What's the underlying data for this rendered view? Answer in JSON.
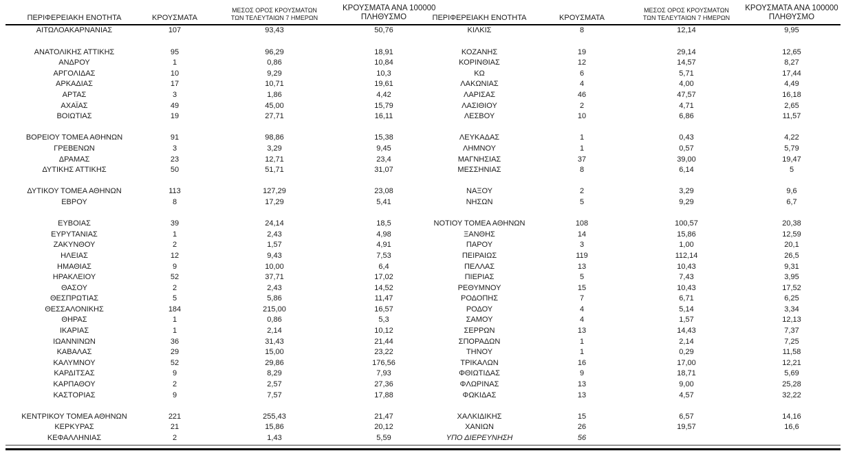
{
  "colors": {
    "background": "#ffffff",
    "text": "#1b1b1b",
    "rule": "#000000"
  },
  "table": {
    "headers": {
      "region": "ΠΕΡΙΦΕΡΕΙΑΚΗ ΕΝΟΤΗΤΑ",
      "cases": "ΚΡΟΥΣΜΑΤΑ",
      "avg7_line1": "ΜΕΣΟΣ ΟΡΟΣ ΚΡΟΥΣΜΑΤΩΝ",
      "avg7_line2": "ΤΩΝ ΤΕΛΕΥΤΑΙΩΝ 7 ΗΜΕΡΩΝ",
      "per100k_line1": "ΚΡΟΥΣΜΑΤΑ ΑΝΑ 100000",
      "per100k_line2": "ΠΛΗΘΥΣΜΟ"
    },
    "rows": [
      {
        "left": {
          "region": "ΑΙΤΩΛΟΑΚΑΡΝΑΝΙΑΣ",
          "cases": "107",
          "avg7": "93,43",
          "per100k": "50,76"
        },
        "right": {
          "region": "ΚΙΛΚΙΣ",
          "cases": "8",
          "avg7": "12,14",
          "per100k": "9,95"
        }
      },
      {
        "left": null,
        "right": null
      },
      {
        "left": {
          "region": "ΑΝΑΤΟΛΙΚΗΣ ΑΤΤΙΚΗΣ",
          "cases": "95",
          "avg7": "96,29",
          "per100k": "18,91"
        },
        "right": {
          "region": "ΚΟΖΑΝΗΣ",
          "cases": "19",
          "avg7": "29,14",
          "per100k": "12,65"
        }
      },
      {
        "left": {
          "region": "ΑΝΔΡΟΥ",
          "cases": "1",
          "avg7": "0,86",
          "per100k": "10,84"
        },
        "right": {
          "region": "ΚΟΡΙΝΘΙΑΣ",
          "cases": "12",
          "avg7": "14,57",
          "per100k": "8,27"
        }
      },
      {
        "left": {
          "region": "ΑΡΓΟΛΙΔΑΣ",
          "cases": "10",
          "avg7": "9,29",
          "per100k": "10,3"
        },
        "right": {
          "region": "ΚΩ",
          "cases": "6",
          "avg7": "5,71",
          "per100k": "17,44"
        }
      },
      {
        "left": {
          "region": "ΑΡΚΑΔΙΑΣ",
          "cases": "17",
          "avg7": "10,71",
          "per100k": "19,61"
        },
        "right": {
          "region": "ΛΑΚΩΝΙΑΣ",
          "cases": "4",
          "avg7": "4,00",
          "per100k": "4,49"
        }
      },
      {
        "left": {
          "region": "ΑΡΤΑΣ",
          "cases": "3",
          "avg7": "1,86",
          "per100k": "4,42"
        },
        "right": {
          "region": "ΛΑΡΙΣΑΣ",
          "cases": "46",
          "avg7": "47,57",
          "per100k": "16,18"
        }
      },
      {
        "left": {
          "region": "ΑΧΑΪΑΣ",
          "cases": "49",
          "avg7": "45,00",
          "per100k": "15,79"
        },
        "right": {
          "region": "ΛΑΣΙΘΙΟΥ",
          "cases": "2",
          "avg7": "4,71",
          "per100k": "2,65"
        }
      },
      {
        "left": {
          "region": "ΒΟΙΩΤΙΑΣ",
          "cases": "19",
          "avg7": "27,71",
          "per100k": "16,11"
        },
        "right": {
          "region": "ΛΕΣΒΟΥ",
          "cases": "10",
          "avg7": "6,86",
          "per100k": "11,57"
        }
      },
      {
        "left": null,
        "right": null
      },
      {
        "left": {
          "region": "ΒΟΡΕΙΟΥ ΤΟΜΕΑ ΑΘΗΝΩΝ",
          "cases": "91",
          "avg7": "98,86",
          "per100k": "15,38"
        },
        "right": {
          "region": "ΛΕΥΚΑΔΑΣ",
          "cases": "1",
          "avg7": "0,43",
          "per100k": "4,22"
        }
      },
      {
        "left": {
          "region": "ΓΡΕΒΕΝΩΝ",
          "cases": "3",
          "avg7": "3,29",
          "per100k": "9,45"
        },
        "right": {
          "region": "ΛΗΜΝΟΥ",
          "cases": "1",
          "avg7": "0,57",
          "per100k": "5,79"
        }
      },
      {
        "left": {
          "region": "ΔΡΑΜΑΣ",
          "cases": "23",
          "avg7": "12,71",
          "per100k": "23,4"
        },
        "right": {
          "region": "ΜΑΓΝΗΣΙΑΣ",
          "cases": "37",
          "avg7": "39,00",
          "per100k": "19,47"
        }
      },
      {
        "left": {
          "region": "ΔΥΤΙΚΗΣ ΑΤΤΙΚΗΣ",
          "cases": "50",
          "avg7": "51,71",
          "per100k": "31,07"
        },
        "right": {
          "region": "ΜΕΣΣΗΝΙΑΣ",
          "cases": "8",
          "avg7": "6,14",
          "per100k": "5"
        }
      },
      {
        "left": null,
        "right": null
      },
      {
        "left": {
          "region": "ΔΥΤΙΚΟΥ ΤΟΜΕΑ ΑΘΗΝΩΝ",
          "cases": "113",
          "avg7": "127,29",
          "per100k": "23,08"
        },
        "right": {
          "region": "ΝΑΞΟΥ",
          "cases": "2",
          "avg7": "3,29",
          "per100k": "9,6"
        }
      },
      {
        "left": {
          "region": "ΕΒΡΟΥ",
          "cases": "8",
          "avg7": "17,29",
          "per100k": "5,41"
        },
        "right": {
          "region": "ΝΗΣΩΝ",
          "cases": "5",
          "avg7": "9,29",
          "per100k": "6,7"
        }
      },
      {
        "left": null,
        "right": null
      },
      {
        "left": {
          "region": "ΕΥΒΟΙΑΣ",
          "cases": "39",
          "avg7": "24,14",
          "per100k": "18,5"
        },
        "right": {
          "region": "ΝΟΤΙΟΥ ΤΟΜΕΑ ΑΘΗΝΩΝ",
          "cases": "108",
          "avg7": "100,57",
          "per100k": "20,38"
        }
      },
      {
        "left": {
          "region": "ΕΥΡΥΤΑΝΙΑΣ",
          "cases": "1",
          "avg7": "2,43",
          "per100k": "4,98"
        },
        "right": {
          "region": "ΞΑΝΘΗΣ",
          "cases": "14",
          "avg7": "15,86",
          "per100k": "12,59"
        }
      },
      {
        "left": {
          "region": "ΖΑΚΥΝΘΟΥ",
          "cases": "2",
          "avg7": "1,57",
          "per100k": "4,91"
        },
        "right": {
          "region": "ΠΑΡΟΥ",
          "cases": "3",
          "avg7": "1,00",
          "per100k": "20,1"
        }
      },
      {
        "left": {
          "region": "ΗΛΕΙΑΣ",
          "cases": "12",
          "avg7": "9,43",
          "per100k": "7,53"
        },
        "right": {
          "region": "ΠΕΙΡΑΙΩΣ",
          "cases": "119",
          "avg7": "112,14",
          "per100k": "26,5"
        }
      },
      {
        "left": {
          "region": "ΗΜΑΘΙΑΣ",
          "cases": "9",
          "avg7": "10,00",
          "per100k": "6,4"
        },
        "right": {
          "region": "ΠΕΛΛΑΣ",
          "cases": "13",
          "avg7": "10,43",
          "per100k": "9,31"
        }
      },
      {
        "left": {
          "region": "ΗΡΑΚΛΕΙΟΥ",
          "cases": "52",
          "avg7": "37,71",
          "per100k": "17,02"
        },
        "right": {
          "region": "ΠΙΕΡΙΑΣ",
          "cases": "5",
          "avg7": "7,43",
          "per100k": "3,95"
        }
      },
      {
        "left": {
          "region": "ΘΑΣΟΥ",
          "cases": "2",
          "avg7": "2,43",
          "per100k": "14,52"
        },
        "right": {
          "region": "ΡΕΘΥΜΝΟΥ",
          "cases": "15",
          "avg7": "10,43",
          "per100k": "17,52"
        }
      },
      {
        "left": {
          "region": "ΘΕΣΠΡΩΤΙΑΣ",
          "cases": "5",
          "avg7": "5,86",
          "per100k": "11,47"
        },
        "right": {
          "region": "ΡΟΔΟΠΗΣ",
          "cases": "7",
          "avg7": "6,71",
          "per100k": "6,25"
        }
      },
      {
        "left": {
          "region": "ΘΕΣΣΑΛΟΝΙΚΗΣ",
          "cases": "184",
          "avg7": "215,00",
          "per100k": "16,57"
        },
        "right": {
          "region": "ΡΟΔΟΥ",
          "cases": "4",
          "avg7": "5,14",
          "per100k": "3,34"
        }
      },
      {
        "left": {
          "region": "ΘΗΡΑΣ",
          "cases": "1",
          "avg7": "0,86",
          "per100k": "5,3"
        },
        "right": {
          "region": "ΣΑΜΟΥ",
          "cases": "4",
          "avg7": "1,57",
          "per100k": "12,13"
        }
      },
      {
        "left": {
          "region": "ΙΚΑΡΙΑΣ",
          "cases": "1",
          "avg7": "2,14",
          "per100k": "10,12"
        },
        "right": {
          "region": "ΣΕΡΡΩΝ",
          "cases": "13",
          "avg7": "14,43",
          "per100k": "7,37"
        }
      },
      {
        "left": {
          "region": "ΙΩΑΝΝΙΝΩΝ",
          "cases": "36",
          "avg7": "31,43",
          "per100k": "21,44"
        },
        "right": {
          "region": "ΣΠΟΡΑΔΩΝ",
          "cases": "1",
          "avg7": "2,14",
          "per100k": "7,25"
        }
      },
      {
        "left": {
          "region": "ΚΑΒΑΛΑΣ",
          "cases": "29",
          "avg7": "15,00",
          "per100k": "23,22"
        },
        "right": {
          "region": "ΤΗΝΟΥ",
          "cases": "1",
          "avg7": "0,29",
          "per100k": "11,58"
        }
      },
      {
        "left": {
          "region": "ΚΑΛΥΜΝΟΥ",
          "cases": "52",
          "avg7": "29,86",
          "per100k": "176,56"
        },
        "right": {
          "region": "ΤΡΙΚΑΛΩΝ",
          "cases": "16",
          "avg7": "17,00",
          "per100k": "12,21"
        }
      },
      {
        "left": {
          "region": "ΚΑΡΔΙΤΣΑΣ",
          "cases": "9",
          "avg7": "8,29",
          "per100k": "7,93"
        },
        "right": {
          "region": "ΦΘΙΩΤΙΔΑΣ",
          "cases": "9",
          "avg7": "18,71",
          "per100k": "5,69"
        }
      },
      {
        "left": {
          "region": "ΚΑΡΠΑΘΟΥ",
          "cases": "2",
          "avg7": "2,57",
          "per100k": "27,36"
        },
        "right": {
          "region": "ΦΛΩΡΙΝΑΣ",
          "cases": "13",
          "avg7": "9,00",
          "per100k": "25,28"
        }
      },
      {
        "left": {
          "region": "ΚΑΣΤΟΡΙΑΣ",
          "cases": "9",
          "avg7": "7,57",
          "per100k": "17,88"
        },
        "right": {
          "region": "ΦΩΚΙΔΑΣ",
          "cases": "13",
          "avg7": "4,57",
          "per100k": "32,22"
        }
      },
      {
        "left": null,
        "right": null
      },
      {
        "left": {
          "region": "ΚΕΝΤΡΙΚΟΥ ΤΟΜΕΑ ΑΘΗΝΩΝ",
          "cases": "221",
          "avg7": "255,43",
          "per100k": "21,47"
        },
        "right": {
          "region": "ΧΑΛΚΙΔΙΚΗΣ",
          "cases": "15",
          "avg7": "6,57",
          "per100k": "14,16"
        }
      },
      {
        "left": {
          "region": "ΚΕΡΚΥΡΑΣ",
          "cases": "21",
          "avg7": "15,86",
          "per100k": "20,12"
        },
        "right": {
          "region": "ΧΑΝΙΩΝ",
          "cases": "26",
          "avg7": "19,57",
          "per100k": "16,6"
        }
      },
      {
        "left": {
          "region": "ΚΕΦΑΛΛΗΝΙΑΣ",
          "cases": "2",
          "avg7": "1,43",
          "per100k": "5,59"
        },
        "right": {
          "region": "ΥΠΟ ΔΙΕΡΕΥΝΗΣΗ",
          "cases": "56",
          "avg7": "",
          "per100k": "",
          "italic": true
        }
      }
    ]
  }
}
